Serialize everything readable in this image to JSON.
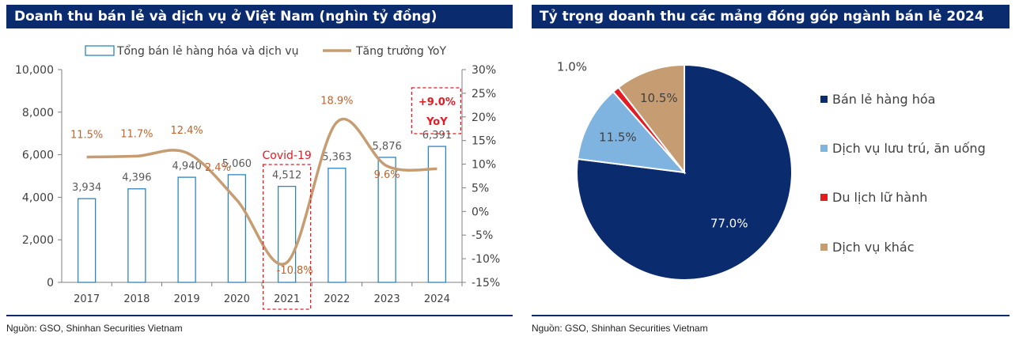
{
  "left_panel": {
    "title": "Doanh thu bán lẻ và dịch vụ ở Việt Nam (nghìn tỷ đồng)",
    "source": "Nguồn: GSO, Shinhan Securities Vietnam",
    "annotation_covid": "Covid-19",
    "annotation_growth_line1": "+9.0%",
    "annotation_growth_line2": "YoY"
  },
  "right_panel": {
    "title": "Tỷ trọng doanh thu các mảng đóng góp ngành bán lẻ 2024",
    "source": "Nguồn: GSO, Shinhan Securities Vietnam"
  },
  "colors": {
    "header_bg": "#0a2b6e",
    "bar_stroke": "#2e86c1",
    "line": "#c69d72",
    "line_label": "#c0642b",
    "highlight": "#e31b23",
    "pie_navy": "#0a2b6e",
    "pie_light_blue": "#7fb3e0",
    "pie_red": "#e31b23",
    "pie_tan": "#c69d72"
  },
  "chart_data": [
    {
      "type": "bar",
      "title": "Doanh thu bán lẻ và dịch vụ ở Việt Nam (nghìn tỷ đồng)",
      "categories": [
        "2017",
        "2018",
        "2019",
        "2020",
        "2021",
        "2022",
        "2023",
        "2024"
      ],
      "series": [
        {
          "name": "Tổng bán lẻ hàng hóa và dịch vụ",
          "axis": "left",
          "kind": "bar",
          "values": [
            3934,
            4396,
            4940,
            5060,
            4512,
            5363,
            5876,
            6391
          ],
          "labels": [
            "3,934",
            "4,396",
            "4,940",
            "5,060",
            "4,512",
            "5,363",
            "5,876",
            "6,391"
          ]
        },
        {
          "name": "Tăng trưởng YoY",
          "axis": "right",
          "kind": "line",
          "values": [
            11.5,
            11.7,
            12.4,
            2.4,
            -10.8,
            18.9,
            9.6,
            9.0
          ],
          "labels": [
            "11.5%",
            "11.7%",
            "12.4%",
            "2.4%",
            "-10.8%",
            "18.9%",
            "9.6%",
            ""
          ]
        }
      ],
      "ylim": [
        0,
        10000
      ],
      "y_ticks": [
        0,
        2000,
        4000,
        6000,
        8000,
        10000
      ],
      "y_tick_labels": [
        "0",
        "2,000",
        "4,000",
        "6,000",
        "8,000",
        "10,000"
      ],
      "y2lim": [
        -15,
        30
      ],
      "y2_ticks": [
        -15,
        -10,
        -5,
        0,
        5,
        10,
        15,
        20,
        25,
        30
      ],
      "y2_tick_labels": [
        "-15%",
        "-10%",
        "-5%",
        "0%",
        "5%",
        "10%",
        "15%",
        "20%",
        "25%",
        "30%"
      ],
      "legend_position": "top",
      "grid": false
    },
    {
      "type": "pie",
      "title": "Tỷ trọng doanh thu các mảng đóng góp ngành bán lẻ 2024",
      "slices": [
        {
          "label": "Bán lẻ hàng hóa",
          "value": 77.0,
          "display": "77.0%",
          "color": "#0a2b6e"
        },
        {
          "label": "Dịch vụ lưu trú, ăn uống",
          "value": 11.5,
          "display": "11.5%",
          "color": "#7fb3e0"
        },
        {
          "label": "Du lịch lữ hành",
          "value": 1.0,
          "display": "1.0%",
          "color": "#e31b23"
        },
        {
          "label": "Dịch vụ khác",
          "value": 10.5,
          "display": "10.5%",
          "color": "#c69d72"
        }
      ],
      "legend_position": "right"
    }
  ]
}
